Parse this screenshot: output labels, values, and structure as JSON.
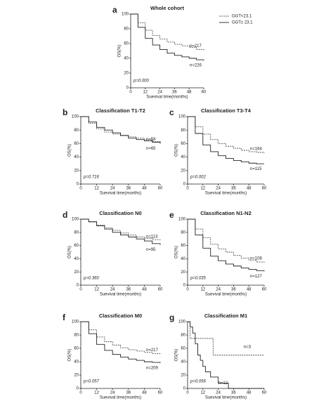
{
  "chart_data": [
    {
      "type": "line",
      "panel_label": "a",
      "title": "Whole cohort",
      "xlabel": "Suevival time(months)",
      "ylabel": "OS(%)",
      "xlim": [
        0,
        60
      ],
      "ylim": [
        0,
        100
      ],
      "xticks": [
        0,
        12,
        24,
        36,
        48,
        60
      ],
      "yticks": [
        0,
        20,
        40,
        60,
        80,
        100
      ],
      "p_value": "p=0.000",
      "series": [
        {
          "name": "GGT<23.1",
          "color": "#555555",
          "dashed": true,
          "label": "n=217",
          "x": [
            0,
            6,
            12,
            18,
            24,
            30,
            36,
            42,
            48,
            54,
            60
          ],
          "values": [
            100,
            88,
            78,
            71,
            66,
            62,
            59,
            57,
            55,
            52,
            51
          ]
        },
        {
          "name": "GGT≥ 23.1",
          "color": "#222222",
          "dashed": false,
          "label": "n=226",
          "x": [
            0,
            6,
            12,
            18,
            24,
            30,
            36,
            42,
            48,
            54,
            60
          ],
          "values": [
            100,
            82,
            67,
            58,
            52,
            47,
            44,
            42,
            40,
            38,
            37
          ]
        }
      ]
    },
    {
      "type": "line",
      "panel_label": "b",
      "title": "Classification T1-T2",
      "xlabel": "Suevival time(months)",
      "ylabel": "OS(%)",
      "xlim": [
        0,
        60
      ],
      "ylim": [
        0,
        100
      ],
      "xticks": [
        0,
        12,
        24,
        36,
        48,
        60
      ],
      "yticks": [
        0,
        20,
        40,
        60,
        80,
        100
      ],
      "p_value": "p=0.716",
      "series": [
        {
          "color": "#555555",
          "dashed": true,
          "label": "n=58",
          "x": [
            0,
            6,
            12,
            18,
            24,
            30,
            36,
            42,
            48,
            54,
            60
          ],
          "values": [
            100,
            90,
            82,
            77,
            74,
            72,
            70,
            68,
            66,
            63,
            60
          ]
        },
        {
          "color": "#222222",
          "dashed": false,
          "label": "n=65",
          "x": [
            0,
            6,
            12,
            18,
            24,
            30,
            36,
            42,
            48,
            54,
            60
          ],
          "values": [
            100,
            92,
            84,
            80,
            76,
            72,
            68,
            66,
            64,
            62,
            60
          ]
        }
      ]
    },
    {
      "type": "line",
      "panel_label": "c",
      "title": "Classification T3-T4",
      "xlabel": "Suevival time(months)",
      "ylabel": "OS(%)",
      "xlim": [
        0,
        60
      ],
      "ylim": [
        0,
        100
      ],
      "xticks": [
        0,
        12,
        24,
        36,
        48,
        60
      ],
      "yticks": [
        0,
        20,
        40,
        60,
        80,
        100
      ],
      "p_value": "p=0.002",
      "series": [
        {
          "color": "#555555",
          "dashed": true,
          "label": "n=164",
          "x": [
            0,
            6,
            12,
            18,
            24,
            30,
            36,
            42,
            48,
            54,
            60
          ],
          "values": [
            100,
            85,
            74,
            66,
            60,
            56,
            53,
            50,
            48,
            47,
            46
          ]
        },
        {
          "color": "#222222",
          "dashed": false,
          "label": "n=115",
          "x": [
            0,
            6,
            12,
            18,
            24,
            30,
            36,
            42,
            48,
            54,
            60
          ],
          "values": [
            100,
            75,
            58,
            48,
            42,
            38,
            35,
            33,
            31,
            30,
            30
          ]
        }
      ]
    },
    {
      "type": "line",
      "panel_label": "d",
      "title": "Classification N0",
      "xlabel": "Suevival time(months)",
      "ylabel": "OS(%)",
      "xlim": [
        0,
        60
      ],
      "ylim": [
        0,
        100
      ],
      "xticks": [
        0,
        12,
        24,
        36,
        48,
        60
      ],
      "yticks": [
        0,
        20,
        40,
        60,
        80,
        100
      ],
      "p_value": "p=0.360",
      "series": [
        {
          "color": "#555555",
          "dashed": true,
          "label": "n=113",
          "x": [
            0,
            6,
            12,
            18,
            24,
            30,
            36,
            42,
            48,
            54,
            60
          ],
          "values": [
            100,
            96,
            91,
            87,
            83,
            79,
            76,
            73,
            71,
            69,
            67
          ]
        },
        {
          "color": "#222222",
          "dashed": false,
          "label": "n=95",
          "x": [
            0,
            6,
            12,
            18,
            24,
            30,
            36,
            42,
            48,
            54,
            60
          ],
          "values": [
            100,
            96,
            90,
            85,
            80,
            76,
            73,
            70,
            67,
            63,
            61
          ]
        }
      ]
    },
    {
      "type": "line",
      "panel_label": "e",
      "title": "Classification N1-N2",
      "xlabel": "Suevival time(months)",
      "ylabel": "OS(%)",
      "xlim": [
        0,
        60
      ],
      "ylim": [
        0,
        100
      ],
      "xticks": [
        0,
        12,
        24,
        36,
        48,
        60
      ],
      "yticks": [
        0,
        20,
        40,
        60,
        80,
        100
      ],
      "p_value": "p=0.035",
      "series": [
        {
          "color": "#555555",
          "dashed": true,
          "label": "n=108",
          "x": [
            0,
            6,
            12,
            18,
            24,
            30,
            36,
            42,
            48,
            54,
            60
          ],
          "values": [
            100,
            85,
            72,
            62,
            55,
            50,
            45,
            41,
            38,
            35,
            34
          ]
        },
        {
          "color": "#222222",
          "dashed": false,
          "label": "n=127",
          "x": [
            0,
            6,
            12,
            18,
            24,
            30,
            36,
            42,
            48,
            54,
            60
          ],
          "values": [
            100,
            76,
            56,
            44,
            37,
            32,
            29,
            26,
            24,
            22,
            21
          ]
        }
      ]
    },
    {
      "type": "line",
      "panel_label": "f",
      "title": "Classification M0",
      "xlabel": "Suevival time(months)",
      "ylabel": "OS(%)",
      "xlim": [
        0,
        60
      ],
      "ylim": [
        0,
        100
      ],
      "xticks": [
        0,
        12,
        24,
        36,
        48,
        60
      ],
      "yticks": [
        0,
        20,
        40,
        60,
        80,
        100
      ],
      "p_value": "p=0.057",
      "series": [
        {
          "color": "#555555",
          "dashed": true,
          "label": "n=217",
          "x": [
            0,
            6,
            12,
            18,
            24,
            30,
            36,
            42,
            48,
            54,
            60
          ],
          "values": [
            100,
            88,
            77,
            70,
            65,
            61,
            58,
            56,
            54,
            52,
            51
          ]
        },
        {
          "color": "#222222",
          "dashed": false,
          "label": "n=209",
          "x": [
            0,
            6,
            12,
            18,
            24,
            30,
            36,
            42,
            48,
            54,
            60
          ],
          "values": [
            100,
            82,
            66,
            57,
            51,
            47,
            44,
            42,
            40,
            39,
            38
          ]
        }
      ]
    },
    {
      "type": "line",
      "panel_label": "g",
      "title": "Classification M1",
      "xlabel": "Suevival time(months)",
      "ylabel": "OS(%)",
      "xlim": [
        0,
        60
      ],
      "ylim": [
        0,
        100
      ],
      "xticks": [
        0,
        12,
        24,
        36,
        48,
        60
      ],
      "yticks": [
        0,
        20,
        40,
        60,
        80,
        100
      ],
      "p_value": "p=0.056",
      "series": [
        {
          "color": "#555555",
          "dashed": true,
          "label": "n=3",
          "x": [
            0,
            2,
            20,
            60
          ],
          "values": [
            100,
            75,
            50,
            50
          ]
        },
        {
          "color": "#222222",
          "dashed": false,
          "label": "n=12",
          "x": [
            0,
            2,
            4,
            6,
            8,
            10,
            12,
            14,
            18,
            24,
            32
          ],
          "values": [
            100,
            92,
            83,
            67,
            50,
            42,
            33,
            25,
            17,
            8,
            0
          ]
        }
      ]
    }
  ]
}
